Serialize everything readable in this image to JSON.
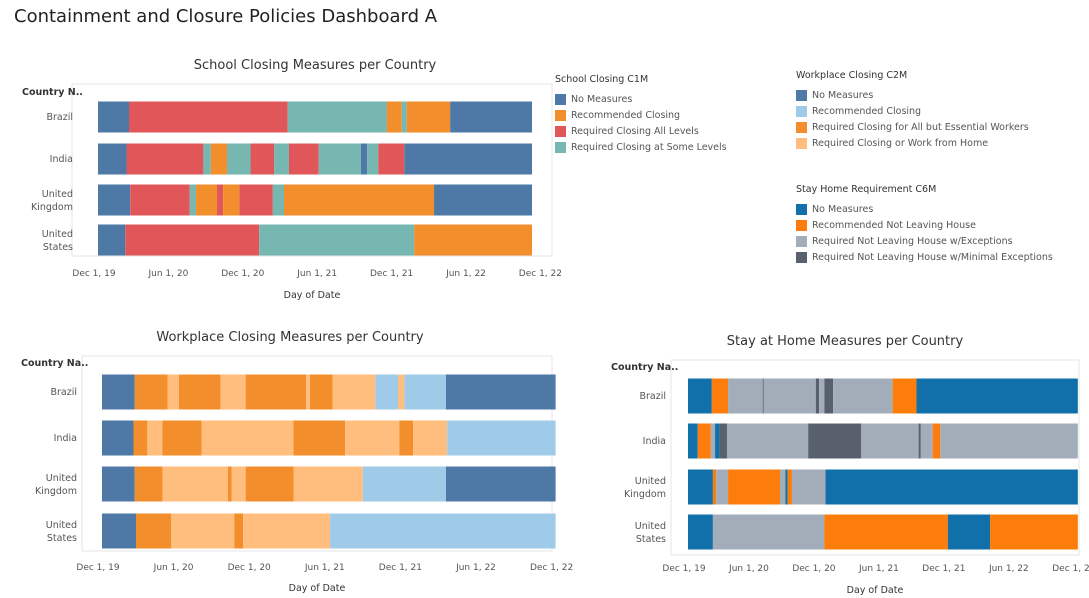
{
  "title": "Containment and Closure Policies Dashboard A",
  "colors": {
    "no_measures": "#4e79a7",
    "recommended_closing": "#f28e2b",
    "required_all_levels": "#e15759",
    "required_some_levels": "#76b7b2",
    "wp_no_measures": "#4e79a7",
    "wp_recommended": "#a0cbe8",
    "wp_required_all_but_essential": "#f28e2b",
    "wp_required_or_wfh": "#ffbe7d",
    "sh_no_measures": "#1170aa",
    "sh_recommended_not_leaving": "#fc7d0b",
    "sh_required_w_exceptions": "#a3acb9",
    "sh_required_minimal_exceptions": "#57606c"
  },
  "legends": {
    "school": {
      "title": "School Closing C1M",
      "items": [
        {
          "label": "No Measures",
          "color": "#4e79a7"
        },
        {
          "label": "Recommended Closing",
          "color": "#f28e2b"
        },
        {
          "label": "Required Closing All Levels",
          "color": "#e15759"
        },
        {
          "label": "Required Closing at Some Levels",
          "color": "#76b7b2"
        }
      ]
    },
    "workplace": {
      "title": "Workplace Closing C2M",
      "items": [
        {
          "label": "No Measures",
          "color": "#4e79a7"
        },
        {
          "label": "Recommended Closing",
          "color": "#a0cbe8"
        },
        {
          "label": "Required Closing for All but Essential Workers",
          "color": "#f28e2b"
        },
        {
          "label": "Required Closing or Work from Home",
          "color": "#ffbe7d"
        }
      ]
    },
    "stayhome": {
      "title": "Stay Home Requirement C6M",
      "items": [
        {
          "label": "No Measures",
          "color": "#1170aa"
        },
        {
          "label": "Recommended Not Leaving House",
          "color": "#fc7d0b"
        },
        {
          "label": "Required Not Leaving House w/Exceptions",
          "color": "#a3acb9"
        },
        {
          "label": "Required Not Leaving House w/Minimal Exceptions",
          "color": "#57606c"
        }
      ]
    }
  },
  "chart_data": [
    {
      "type": "bar",
      "orientation": "horizontal-timeline",
      "title": "School Closing Measures per Country",
      "ylabel": "Country N..",
      "xlabel": "Day of Date",
      "x_ticks": [
        "Dec 1, 19",
        "Jun 1, 20",
        "Dec 1, 20",
        "Jun 1, 21",
        "Dec 1, 21",
        "Jun 1, 22",
        "Dec 1, 22"
      ],
      "xlim_months": [
        -0.6,
        36.6
      ],
      "categories": [
        "Brazil",
        "India",
        "United Kingdom",
        "United States"
      ],
      "category_lines": [
        [
          "Brazil"
        ],
        [
          "India"
        ],
        [
          "United",
          "Kingdom"
        ],
        [
          "United",
          "States"
        ]
      ],
      "segments": {
        "Brazil": [
          {
            "start": 1.0,
            "end": 3.5,
            "code": "no_measures"
          },
          {
            "start": 3.5,
            "end": 16.3,
            "code": "required_all_levels"
          },
          {
            "start": 16.3,
            "end": 24.3,
            "code": "required_some_levels"
          },
          {
            "start": 24.3,
            "end": 25.5,
            "code": "recommended_closing"
          },
          {
            "start": 25.5,
            "end": 25.9,
            "code": "required_some_levels"
          },
          {
            "start": 25.9,
            "end": 29.4,
            "code": "recommended_closing"
          },
          {
            "start": 29.4,
            "end": 36.0,
            "code": "no_measures"
          }
        ],
        "India": [
          {
            "start": 1.0,
            "end": 3.3,
            "code": "no_measures"
          },
          {
            "start": 3.3,
            "end": 9.5,
            "code": "required_all_levels"
          },
          {
            "start": 9.5,
            "end": 10.1,
            "code": "required_some_levels"
          },
          {
            "start": 10.1,
            "end": 11.4,
            "code": "recommended_closing"
          },
          {
            "start": 11.4,
            "end": 13.3,
            "code": "required_some_levels"
          },
          {
            "start": 13.3,
            "end": 15.2,
            "code": "required_all_levels"
          },
          {
            "start": 15.2,
            "end": 16.4,
            "code": "required_some_levels"
          },
          {
            "start": 16.4,
            "end": 18.8,
            "code": "required_all_levels"
          },
          {
            "start": 18.8,
            "end": 22.2,
            "code": "required_some_levels"
          },
          {
            "start": 22.2,
            "end": 22.7,
            "code": "no_measures"
          },
          {
            "start": 22.7,
            "end": 23.6,
            "code": "required_some_levels"
          },
          {
            "start": 23.6,
            "end": 25.7,
            "code": "required_all_levels"
          },
          {
            "start": 25.7,
            "end": 36.0,
            "code": "no_measures"
          }
        ],
        "United Kingdom": [
          {
            "start": 1.0,
            "end": 3.6,
            "code": "no_measures"
          },
          {
            "start": 3.6,
            "end": 8.4,
            "code": "required_all_levels"
          },
          {
            "start": 8.4,
            "end": 8.9,
            "code": "required_some_levels"
          },
          {
            "start": 8.9,
            "end": 10.6,
            "code": "recommended_closing"
          },
          {
            "start": 10.6,
            "end": 11.1,
            "code": "required_all_levels"
          },
          {
            "start": 11.1,
            "end": 12.4,
            "code": "recommended_closing"
          },
          {
            "start": 12.4,
            "end": 15.1,
            "code": "required_all_levels"
          },
          {
            "start": 15.1,
            "end": 16.0,
            "code": "required_some_levels"
          },
          {
            "start": 16.0,
            "end": 28.1,
            "code": "recommended_closing"
          },
          {
            "start": 28.1,
            "end": 36.0,
            "code": "no_measures"
          }
        ],
        "United States": [
          {
            "start": 1.0,
            "end": 3.2,
            "code": "no_measures"
          },
          {
            "start": 3.2,
            "end": 14.0,
            "code": "required_all_levels"
          },
          {
            "start": 14.0,
            "end": 26.5,
            "code": "required_some_levels"
          },
          {
            "start": 26.5,
            "end": 36.0,
            "code": "recommended_closing"
          }
        ]
      }
    },
    {
      "type": "bar",
      "orientation": "horizontal-timeline",
      "title": "Workplace Closing Measures per Country",
      "ylabel": "Country Na..",
      "xlabel": "Day of Date",
      "x_ticks": [
        "Dec 1, 19",
        "Jun 1, 20",
        "Dec 1, 20",
        "Jun 1, 21",
        "Dec 1, 21",
        "Jun 1, 22",
        "Dec 1, 22"
      ],
      "xlim_months": [
        -0.6,
        36.6
      ],
      "categories": [
        "Brazil",
        "India",
        "United Kingdom",
        "United States"
      ],
      "category_lines": [
        [
          "Brazil"
        ],
        [
          "India"
        ],
        [
          "United",
          "Kingdom"
        ],
        [
          "United",
          "States"
        ]
      ],
      "segments": {
        "Brazil": [
          {
            "start": 1.0,
            "end": 3.6,
            "code": "wp_no_measures"
          },
          {
            "start": 3.6,
            "end": 6.2,
            "code": "wp_required_all_but_essential"
          },
          {
            "start": 6.2,
            "end": 7.1,
            "code": "wp_required_or_wfh"
          },
          {
            "start": 7.1,
            "end": 10.4,
            "code": "wp_required_all_but_essential"
          },
          {
            "start": 10.4,
            "end": 12.4,
            "code": "wp_required_or_wfh"
          },
          {
            "start": 12.4,
            "end": 17.2,
            "code": "wp_required_all_but_essential"
          },
          {
            "start": 17.2,
            "end": 17.5,
            "code": "wp_required_or_wfh"
          },
          {
            "start": 17.5,
            "end": 19.3,
            "code": "wp_required_all_but_essential"
          },
          {
            "start": 19.3,
            "end": 22.7,
            "code": "wp_required_or_wfh"
          },
          {
            "start": 22.7,
            "end": 24.5,
            "code": "wp_recommended"
          },
          {
            "start": 24.5,
            "end": 25.0,
            "code": "wp_required_or_wfh"
          },
          {
            "start": 25.0,
            "end": 28.3,
            "code": "wp_recommended"
          },
          {
            "start": 28.3,
            "end": 37.0,
            "code": "wp_no_measures"
          }
        ],
        "India": [
          {
            "start": 1.0,
            "end": 3.5,
            "code": "wp_no_measures"
          },
          {
            "start": 3.5,
            "end": 4.6,
            "code": "wp_required_all_but_essential"
          },
          {
            "start": 4.6,
            "end": 5.8,
            "code": "wp_required_or_wfh"
          },
          {
            "start": 5.8,
            "end": 8.9,
            "code": "wp_required_all_but_essential"
          },
          {
            "start": 8.9,
            "end": 16.2,
            "code": "wp_required_or_wfh"
          },
          {
            "start": 16.2,
            "end": 20.3,
            "code": "wp_required_all_but_essential"
          },
          {
            "start": 20.3,
            "end": 24.6,
            "code": "wp_required_or_wfh"
          },
          {
            "start": 24.6,
            "end": 25.7,
            "code": "wp_required_all_but_essential"
          },
          {
            "start": 25.7,
            "end": 28.4,
            "code": "wp_required_or_wfh"
          },
          {
            "start": 28.4,
            "end": 37.0,
            "code": "wp_recommended"
          }
        ],
        "United Kingdom": [
          {
            "start": 1.0,
            "end": 3.6,
            "code": "wp_no_measures"
          },
          {
            "start": 3.6,
            "end": 5.8,
            "code": "wp_required_all_but_essential"
          },
          {
            "start": 5.8,
            "end": 11.0,
            "code": "wp_required_or_wfh"
          },
          {
            "start": 11.0,
            "end": 11.3,
            "code": "wp_required_all_but_essential"
          },
          {
            "start": 11.3,
            "end": 12.4,
            "code": "wp_required_or_wfh"
          },
          {
            "start": 12.4,
            "end": 16.2,
            "code": "wp_required_all_but_essential"
          },
          {
            "start": 16.2,
            "end": 21.7,
            "code": "wp_required_or_wfh"
          },
          {
            "start": 21.7,
            "end": 28.3,
            "code": "wp_recommended"
          },
          {
            "start": 28.3,
            "end": 37.0,
            "code": "wp_no_measures"
          }
        ],
        "United States": [
          {
            "start": 1.0,
            "end": 3.7,
            "code": "wp_no_measures"
          },
          {
            "start": 3.7,
            "end": 6.5,
            "code": "wp_required_all_but_essential"
          },
          {
            "start": 6.5,
            "end": 11.5,
            "code": "wp_required_or_wfh"
          },
          {
            "start": 11.5,
            "end": 12.2,
            "code": "wp_required_all_but_essential"
          },
          {
            "start": 12.2,
            "end": 19.1,
            "code": "wp_required_or_wfh"
          },
          {
            "start": 19.1,
            "end": 37.0,
            "code": "wp_recommended"
          }
        ]
      }
    },
    {
      "type": "bar",
      "orientation": "horizontal-timeline",
      "title": "Stay at Home Measures per Country",
      "ylabel": "Country Na..",
      "xlabel": "Day of Date",
      "x_ticks": [
        "Dec 1, 19",
        "Jun 1, 20",
        "Dec 1, 20",
        "Jun 1, 21",
        "Dec 1, 21",
        "Jun 1, 22",
        "Dec 1, 22"
      ],
      "xlim_months": [
        -0.6,
        36.6
      ],
      "categories": [
        "Brazil",
        "India",
        "United Kingdom",
        "United States"
      ],
      "category_lines": [
        [
          "Brazil"
        ],
        [
          "India"
        ],
        [
          "United",
          "Kingdom"
        ],
        [
          "United",
          "States"
        ]
      ],
      "segments": {
        "Brazil": [
          {
            "start": 1.0,
            "end": 3.2,
            "code": "sh_no_measures"
          },
          {
            "start": 3.2,
            "end": 4.7,
            "code": "sh_recommended_not_leaving"
          },
          {
            "start": 4.7,
            "end": 7.9,
            "code": "sh_required_w_exceptions"
          },
          {
            "start": 7.9,
            "end": 8.0,
            "code": "sh_required_minimal_exceptions"
          },
          {
            "start": 8.0,
            "end": 12.8,
            "code": "sh_required_w_exceptions"
          },
          {
            "start": 12.8,
            "end": 13.1,
            "code": "sh_required_minimal_exceptions"
          },
          {
            "start": 13.1,
            "end": 13.6,
            "code": "sh_required_w_exceptions"
          },
          {
            "start": 13.6,
            "end": 14.4,
            "code": "sh_required_minimal_exceptions"
          },
          {
            "start": 14.4,
            "end": 19.9,
            "code": "sh_required_w_exceptions"
          },
          {
            "start": 19.9,
            "end": 22.1,
            "code": "sh_recommended_not_leaving"
          },
          {
            "start": 22.1,
            "end": 37.0,
            "code": "sh_no_measures"
          }
        ],
        "India": [
          {
            "start": 1.0,
            "end": 1.9,
            "code": "sh_no_measures"
          },
          {
            "start": 1.9,
            "end": 3.1,
            "code": "sh_recommended_not_leaving"
          },
          {
            "start": 3.1,
            "end": 3.5,
            "code": "sh_required_w_exceptions"
          },
          {
            "start": 3.5,
            "end": 3.9,
            "code": "sh_no_measures"
          },
          {
            "start": 3.9,
            "end": 4.6,
            "code": "sh_required_minimal_exceptions"
          },
          {
            "start": 4.6,
            "end": 12.1,
            "code": "sh_required_w_exceptions"
          },
          {
            "start": 12.1,
            "end": 17.0,
            "code": "sh_required_minimal_exceptions"
          },
          {
            "start": 17.0,
            "end": 22.3,
            "code": "sh_required_w_exceptions"
          },
          {
            "start": 22.3,
            "end": 22.5,
            "code": "sh_required_minimal_exceptions"
          },
          {
            "start": 22.5,
            "end": 23.6,
            "code": "sh_required_w_exceptions"
          },
          {
            "start": 23.6,
            "end": 24.3,
            "code": "sh_recommended_not_leaving"
          },
          {
            "start": 24.3,
            "end": 37.0,
            "code": "sh_required_w_exceptions"
          }
        ],
        "United Kingdom": [
          {
            "start": 1.0,
            "end": 3.3,
            "code": "sh_no_measures"
          },
          {
            "start": 3.3,
            "end": 3.6,
            "code": "sh_recommended_not_leaving"
          },
          {
            "start": 3.6,
            "end": 4.7,
            "code": "sh_required_w_exceptions"
          },
          {
            "start": 4.7,
            "end": 9.5,
            "code": "sh_recommended_not_leaving"
          },
          {
            "start": 9.5,
            "end": 10.0,
            "code": "sh_required_w_exceptions"
          },
          {
            "start": 10.0,
            "end": 10.2,
            "code": "sh_no_measures"
          },
          {
            "start": 10.2,
            "end": 10.6,
            "code": "sh_recommended_not_leaving"
          },
          {
            "start": 10.6,
            "end": 13.7,
            "code": "sh_required_w_exceptions"
          },
          {
            "start": 13.7,
            "end": 37.0,
            "code": "sh_no_measures"
          }
        ],
        "United States": [
          {
            "start": 1.0,
            "end": 3.3,
            "code": "sh_no_measures"
          },
          {
            "start": 3.3,
            "end": 13.6,
            "code": "sh_required_w_exceptions"
          },
          {
            "start": 13.6,
            "end": 25.0,
            "code": "sh_recommended_not_leaving"
          },
          {
            "start": 25.0,
            "end": 28.9,
            "code": "sh_no_measures"
          },
          {
            "start": 28.9,
            "end": 37.0,
            "code": "sh_recommended_not_leaving"
          }
        ]
      }
    }
  ]
}
